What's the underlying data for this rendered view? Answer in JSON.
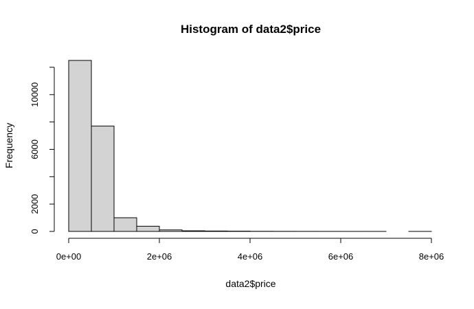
{
  "chart_data": {
    "type": "bar",
    "title": "Histogram of data2$price",
    "xlabel": "data2$price",
    "ylabel": "Frequency",
    "bar_fill": "#d3d3d3",
    "bar_stroke": "#000000",
    "bin_width": 500000,
    "bins": [
      {
        "start": 0,
        "end": 500000,
        "count": 12500
      },
      {
        "start": 500000,
        "end": 1000000,
        "count": 7700
      },
      {
        "start": 1000000,
        "end": 1500000,
        "count": 1000
      },
      {
        "start": 1500000,
        "end": 2000000,
        "count": 380
      },
      {
        "start": 2000000,
        "end": 2500000,
        "count": 110
      },
      {
        "start": 2500000,
        "end": 3000000,
        "count": 45
      },
      {
        "start": 3000000,
        "end": 3500000,
        "count": 30
      },
      {
        "start": 3500000,
        "end": 4000000,
        "count": 20
      },
      {
        "start": 4000000,
        "end": 4500000,
        "count": 8
      },
      {
        "start": 4500000,
        "end": 5000000,
        "count": 5
      },
      {
        "start": 5000000,
        "end": 5500000,
        "count": 3
      },
      {
        "start": 5500000,
        "end": 6000000,
        "count": 2
      },
      {
        "start": 6000000,
        "end": 6500000,
        "count": 1
      },
      {
        "start": 6500000,
        "end": 7000000,
        "count": 1
      },
      {
        "start": 7000000,
        "end": 7500000,
        "count": 0
      },
      {
        "start": 7500000,
        "end": 8000000,
        "count": 1
      }
    ],
    "xlim": [
      0,
      8000000
    ],
    "ylim": [
      0,
      12000
    ],
    "x_ticks": [
      {
        "value": 0,
        "label": "0e+00"
      },
      {
        "value": 2000000,
        "label": "2e+06"
      },
      {
        "value": 4000000,
        "label": "4e+06"
      },
      {
        "value": 6000000,
        "label": "6e+06"
      },
      {
        "value": 8000000,
        "label": "8e+06"
      }
    ],
    "y_ticks": [
      {
        "value": 0,
        "label": "0"
      },
      {
        "value": 2000,
        "label": "2000"
      },
      {
        "value": 6000,
        "label": "6000"
      },
      {
        "value": 10000,
        "label": "10000"
      }
    ],
    "y_minor_ticks": [
      4000,
      8000,
      12000
    ],
    "grid": false
  }
}
